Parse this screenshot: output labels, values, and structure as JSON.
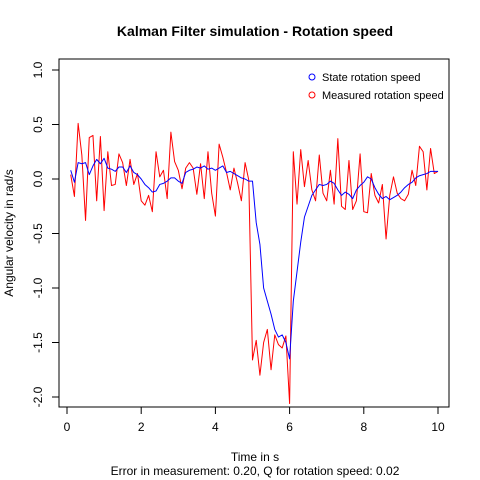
{
  "chart_data": {
    "type": "line",
    "title": "Kalman Filter simulation - Rotation speed",
    "xlabel": "Time in s",
    "ylabel": "Angular velocity in rad/s",
    "subtitle": "Error in measurement: 0.20, Q for rotation speed: 0.02",
    "xlim": [
      0,
      10
    ],
    "ylim": [
      -2.0,
      1.0
    ],
    "x_ticks": [
      "0",
      "2",
      "4",
      "6",
      "8",
      "10"
    ],
    "y_ticks": [
      "-2.0",
      "-1.5",
      "-1.0",
      "-0.5",
      "0.0",
      "0.5",
      "1.0"
    ],
    "grid": false,
    "legend_position": "top-right",
    "series": [
      {
        "name": "State rotation speed",
        "color": "#0000ff",
        "x": [
          0.1,
          0.2,
          0.3,
          0.4,
          0.5,
          0.6,
          0.7,
          0.8,
          0.9,
          1.0,
          1.1,
          1.2,
          1.3,
          1.4,
          1.5,
          1.6,
          1.7,
          1.8,
          1.9,
          2.0,
          2.1,
          2.2,
          2.3,
          2.4,
          2.5,
          2.6,
          2.7,
          2.8,
          2.9,
          3.0,
          3.1,
          3.2,
          3.3,
          3.4,
          3.5,
          3.6,
          3.7,
          3.8,
          3.9,
          4.0,
          4.1,
          4.2,
          4.3,
          4.4,
          4.5,
          4.6,
          4.7,
          4.8,
          4.9,
          5.0,
          5.1,
          5.2,
          5.3,
          5.4,
          5.5,
          5.6,
          5.7,
          5.8,
          5.9,
          6.0,
          6.1,
          6.2,
          6.3,
          6.4,
          6.5,
          6.6,
          6.7,
          6.8,
          6.9,
          7.0,
          7.1,
          7.2,
          7.3,
          7.4,
          7.5,
          7.6,
          7.7,
          7.8,
          7.9,
          8.0,
          8.1,
          8.2,
          8.3,
          8.4,
          8.5,
          8.6,
          8.7,
          8.8,
          8.9,
          9.0,
          9.1,
          9.2,
          9.3,
          9.4,
          9.5,
          9.6,
          9.7,
          9.8,
          9.9,
          10.0
        ],
        "y": [
          0.08,
          -0.03,
          0.15,
          0.14,
          0.15,
          0.04,
          0.12,
          0.18,
          0.14,
          0.19,
          0.1,
          0.09,
          0.07,
          0.11,
          0.11,
          0.06,
          0.12,
          0.06,
          0.04,
          0.0,
          -0.05,
          -0.08,
          -0.12,
          -0.11,
          -0.05,
          -0.04,
          -0.02,
          0.01,
          0.01,
          -0.02,
          -0.04,
          0.06,
          0.08,
          0.09,
          0.11,
          0.1,
          0.12,
          0.09,
          0.1,
          0.08,
          0.1,
          0.12,
          0.06,
          0.07,
          0.05,
          0.03,
          0.01,
          0.0,
          -0.02,
          -0.02,
          -0.4,
          -0.6,
          -1.0,
          -1.12,
          -1.24,
          -1.38,
          -1.45,
          -1.43,
          -1.5,
          -1.65,
          -1.12,
          -0.85,
          -0.58,
          -0.35,
          -0.25,
          -0.15,
          -0.1,
          -0.05,
          -0.06,
          -0.05,
          -0.02,
          -0.04,
          -0.1,
          -0.15,
          -0.12,
          -0.14,
          -0.18,
          -0.1,
          -0.06,
          -0.03,
          0.02,
          0.0,
          -0.08,
          -0.14,
          -0.18,
          -0.16,
          -0.19,
          -0.17,
          -0.15,
          -0.12,
          -0.08,
          -0.05,
          -0.03,
          0.01,
          0.03,
          0.04,
          0.05,
          0.07,
          0.07,
          0.07
        ]
      },
      {
        "name": "Measured rotation speed",
        "color": "#ff0000",
        "x": [
          0.1,
          0.2,
          0.3,
          0.4,
          0.5,
          0.6,
          0.7,
          0.8,
          0.9,
          1.0,
          1.1,
          1.2,
          1.3,
          1.4,
          1.5,
          1.6,
          1.7,
          1.8,
          1.9,
          2.0,
          2.1,
          2.2,
          2.3,
          2.4,
          2.5,
          2.6,
          2.7,
          2.8,
          2.9,
          3.0,
          3.1,
          3.2,
          3.3,
          3.4,
          3.5,
          3.6,
          3.7,
          3.8,
          3.9,
          4.0,
          4.1,
          4.2,
          4.3,
          4.4,
          4.5,
          4.6,
          4.7,
          4.8,
          4.9,
          5.0,
          5.1,
          5.2,
          5.3,
          5.4,
          5.5,
          5.6,
          5.7,
          5.8,
          5.9,
          6.0,
          6.1,
          6.2,
          6.3,
          6.4,
          6.5,
          6.6,
          6.7,
          6.8,
          6.9,
          7.0,
          7.1,
          7.2,
          7.3,
          7.4,
          7.5,
          7.6,
          7.7,
          7.8,
          7.9,
          8.0,
          8.1,
          8.2,
          8.3,
          8.4,
          8.5,
          8.6,
          8.7,
          8.8,
          8.9,
          9.0,
          9.1,
          9.2,
          9.3,
          9.4,
          9.5,
          9.6,
          9.7,
          9.8,
          9.9,
          10.0
        ],
        "y": [
          0.04,
          -0.16,
          0.51,
          0.22,
          -0.38,
          0.38,
          0.4,
          -0.2,
          0.39,
          -0.29,
          0.25,
          -0.06,
          -0.05,
          0.23,
          0.15,
          -0.06,
          0.18,
          -0.05,
          0.05,
          -0.2,
          -0.24,
          -0.15,
          -0.3,
          0.25,
          0.02,
          0.08,
          -0.18,
          0.43,
          0.16,
          0.08,
          -0.09,
          0.1,
          0.15,
          0.1,
          -0.14,
          0.14,
          -0.18,
          0.25,
          -0.13,
          -0.34,
          0.32,
          0.2,
          0.06,
          -0.1,
          0.1,
          -0.04,
          -0.2,
          0.15,
          -0.01,
          -1.66,
          -1.48,
          -1.8,
          -1.5,
          -1.38,
          -1.75,
          -1.43,
          -1.52,
          -1.55,
          -1.44,
          -2.06,
          0.25,
          -0.23,
          0.27,
          -0.07,
          0.17,
          -0.1,
          -0.2,
          0.22,
          -0.13,
          -0.2,
          0.08,
          -0.23,
          0.37,
          -0.25,
          -0.28,
          0.17,
          -0.28,
          -0.2,
          0.23,
          -0.3,
          -0.31,
          0.05,
          -0.15,
          -0.22,
          -0.05,
          -0.55,
          -0.15,
          0.02,
          -0.13,
          -0.18,
          -0.2,
          -0.14,
          0.08,
          -0.06,
          0.3,
          0.25,
          -0.1,
          0.28,
          0.05,
          0.07
        ]
      }
    ]
  }
}
